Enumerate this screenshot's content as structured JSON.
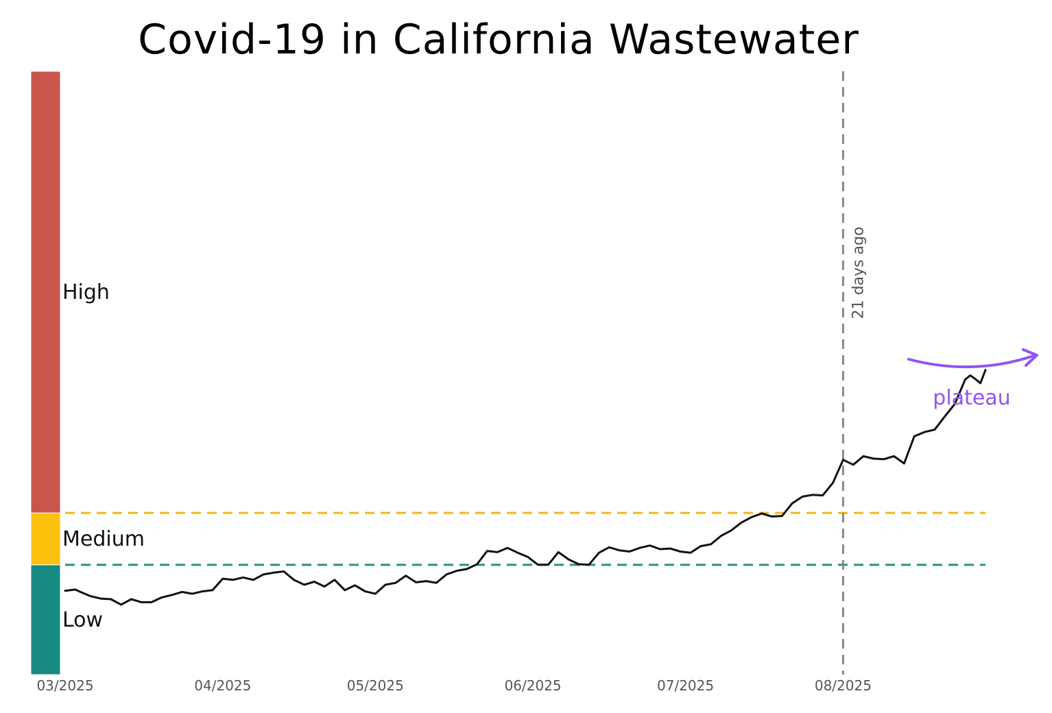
{
  "chart_data": {
    "type": "line",
    "title": "Covid-19 in California Wastewater",
    "xlabel": "",
    "ylabel": "",
    "x_ticks": [
      "03/2025",
      "04/2025",
      "05/2025",
      "06/2025",
      "07/2025",
      "08/2025"
    ],
    "xlim": [
      "2025-03-01",
      "2025-08-29"
    ],
    "ylim": [
      0,
      100
    ],
    "y_unit_note": "relative wastewater level (0 = bottom of Low band, 100 = top of High band)",
    "grid": false,
    "legend": "none",
    "bands": [
      {
        "label": "Low",
        "from": 0,
        "to": 18.2,
        "color": "#178a82"
      },
      {
        "label": "Medium",
        "from": 18.2,
        "to": 26.8,
        "color": "#fcc10d"
      },
      {
        "label": "High",
        "from": 26.8,
        "to": 100,
        "color": "#c9554c"
      }
    ],
    "thresholds": [
      {
        "value": 26.8,
        "color": "#f0b81a",
        "style": "dashed"
      },
      {
        "value": 18.2,
        "color": "#2b8e88",
        "style": "dashed"
      }
    ],
    "vertical_marker": {
      "x": "2025-08-01",
      "label": "21 days ago",
      "color": "#888888",
      "style": "dashed"
    },
    "annotation": {
      "text": "plateau",
      "color": "#9354f0"
    },
    "series": [
      {
        "color": "#111111",
        "points": [
          [
            "2025-03-01",
            13.9
          ],
          [
            "2025-03-03",
            14.1
          ],
          [
            "2025-03-04",
            13.7
          ],
          [
            "2025-03-06",
            13.0
          ],
          [
            "2025-03-08",
            12.6
          ],
          [
            "2025-03-10",
            12.5
          ],
          [
            "2025-03-12",
            11.6
          ],
          [
            "2025-03-14",
            12.5
          ],
          [
            "2025-03-16",
            12.0
          ],
          [
            "2025-03-18",
            12.0
          ],
          [
            "2025-03-20",
            12.8
          ],
          [
            "2025-03-22",
            13.2
          ],
          [
            "2025-03-24",
            13.7
          ],
          [
            "2025-03-26",
            13.4
          ],
          [
            "2025-03-28",
            13.8
          ],
          [
            "2025-03-30",
            14.0
          ],
          [
            "2025-04-01",
            15.9
          ],
          [
            "2025-04-03",
            15.7
          ],
          [
            "2025-04-05",
            16.1
          ],
          [
            "2025-04-07",
            15.7
          ],
          [
            "2025-04-09",
            16.6
          ],
          [
            "2025-04-11",
            16.9
          ],
          [
            "2025-04-13",
            17.1
          ],
          [
            "2025-04-15",
            15.7
          ],
          [
            "2025-04-17",
            14.9
          ],
          [
            "2025-04-19",
            15.4
          ],
          [
            "2025-04-21",
            14.6
          ],
          [
            "2025-04-23",
            15.7
          ],
          [
            "2025-04-25",
            14.0
          ],
          [
            "2025-04-27",
            14.8
          ],
          [
            "2025-04-29",
            13.8
          ],
          [
            "2025-05-01",
            13.4
          ],
          [
            "2025-05-03",
            14.9
          ],
          [
            "2025-05-05",
            15.2
          ],
          [
            "2025-05-07",
            16.4
          ],
          [
            "2025-05-09",
            15.3
          ],
          [
            "2025-05-11",
            15.5
          ],
          [
            "2025-05-13",
            15.2
          ],
          [
            "2025-05-15",
            16.6
          ],
          [
            "2025-05-17",
            17.2
          ],
          [
            "2025-05-19",
            17.5
          ],
          [
            "2025-05-21",
            18.3
          ],
          [
            "2025-05-23",
            20.5
          ],
          [
            "2025-05-25",
            20.3
          ],
          [
            "2025-05-27",
            21.0
          ],
          [
            "2025-05-29",
            20.2
          ],
          [
            "2025-05-31",
            19.5
          ],
          [
            "2025-06-02",
            18.2
          ],
          [
            "2025-06-04",
            18.2
          ],
          [
            "2025-06-06",
            20.3
          ],
          [
            "2025-06-08",
            19.1
          ],
          [
            "2025-06-10",
            18.3
          ],
          [
            "2025-06-12",
            18.2
          ],
          [
            "2025-06-14",
            20.2
          ],
          [
            "2025-06-16",
            21.1
          ],
          [
            "2025-06-18",
            20.6
          ],
          [
            "2025-06-20",
            20.4
          ],
          [
            "2025-06-22",
            21.0
          ],
          [
            "2025-06-24",
            21.4
          ],
          [
            "2025-06-26",
            20.8
          ],
          [
            "2025-06-28",
            20.9
          ],
          [
            "2025-06-30",
            20.4
          ],
          [
            "2025-07-02",
            20.2
          ],
          [
            "2025-07-04",
            21.3
          ],
          [
            "2025-07-06",
            21.6
          ],
          [
            "2025-07-08",
            23.0
          ],
          [
            "2025-07-10",
            23.9
          ],
          [
            "2025-07-12",
            25.2
          ],
          [
            "2025-07-14",
            26.1
          ],
          [
            "2025-07-16",
            26.7
          ],
          [
            "2025-07-18",
            26.2
          ],
          [
            "2025-07-20",
            26.3
          ],
          [
            "2025-07-22",
            28.4
          ],
          [
            "2025-07-24",
            29.5
          ],
          [
            "2025-07-26",
            29.8
          ],
          [
            "2025-07-28",
            29.7
          ],
          [
            "2025-07-30",
            31.8
          ],
          [
            "2025-08-01",
            35.6
          ],
          [
            "2025-08-03",
            34.8
          ],
          [
            "2025-08-05",
            36.2
          ],
          [
            "2025-08-07",
            35.8
          ],
          [
            "2025-08-09",
            35.7
          ],
          [
            "2025-08-11",
            36.2
          ],
          [
            "2025-08-13",
            35.0
          ],
          [
            "2025-08-15",
            39.5
          ],
          [
            "2025-08-17",
            40.2
          ],
          [
            "2025-08-19",
            40.6
          ],
          [
            "2025-08-21",
            42.8
          ],
          [
            "2025-08-23",
            44.9
          ],
          [
            "2025-08-25",
            48.9
          ],
          [
            "2025-08-26",
            49.6
          ],
          [
            "2025-08-27",
            49.0
          ],
          [
            "2025-08-28",
            48.3
          ],
          [
            "2025-08-29",
            50.5
          ]
        ]
      }
    ]
  }
}
